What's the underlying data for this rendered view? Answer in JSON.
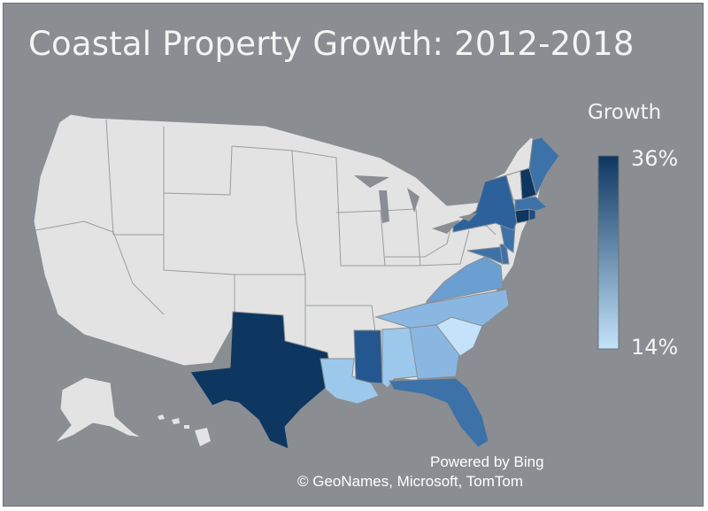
{
  "title": "Coastal Property Growth: 2012-2018",
  "legend": {
    "title": "Growth",
    "max_label": "36%",
    "min_label": "14%",
    "max_value": 36,
    "min_value": 14,
    "color_low": "#c4e3fb",
    "color_high": "#0d3660"
  },
  "attribution": {
    "line1": "Powered by Bing",
    "line2": "© GeoNames, Microsoft, TomTom"
  },
  "colors": {
    "background": "#8a8d91",
    "no_data": "#e3e3e3",
    "state_border": "#8a8d91"
  },
  "states_with_data": [
    {
      "state": "Texas",
      "color": "#0d3660"
    },
    {
      "state": "Louisiana",
      "color": "#9cc8ec"
    },
    {
      "state": "Mississippi",
      "color": "#24578f"
    },
    {
      "state": "Alabama",
      "color": "#9cc8ec"
    },
    {
      "state": "Georgia",
      "color": "#8ab7e2"
    },
    {
      "state": "Florida",
      "color": "#3d72a9"
    },
    {
      "state": "South Carolina",
      "color": "#c4e3fb"
    },
    {
      "state": "North Carolina",
      "color": "#8ab7e2"
    },
    {
      "state": "Virginia",
      "color": "#6b9fd1"
    },
    {
      "state": "Maryland",
      "color": "#3d72a9"
    },
    {
      "state": "Delaware",
      "color": "#3d72a9"
    },
    {
      "state": "New Jersey",
      "color": "#3d72a9"
    },
    {
      "state": "New York",
      "color": "#2d619b"
    },
    {
      "state": "Connecticut",
      "color": "#0d3660"
    },
    {
      "state": "Rhode Island",
      "color": "#1c4c82"
    },
    {
      "state": "Massachusetts",
      "color": "#3d72a9"
    },
    {
      "state": "New Hampshire",
      "color": "#0d3660"
    },
    {
      "state": "Maine",
      "color": "#3d72a9"
    }
  ]
}
